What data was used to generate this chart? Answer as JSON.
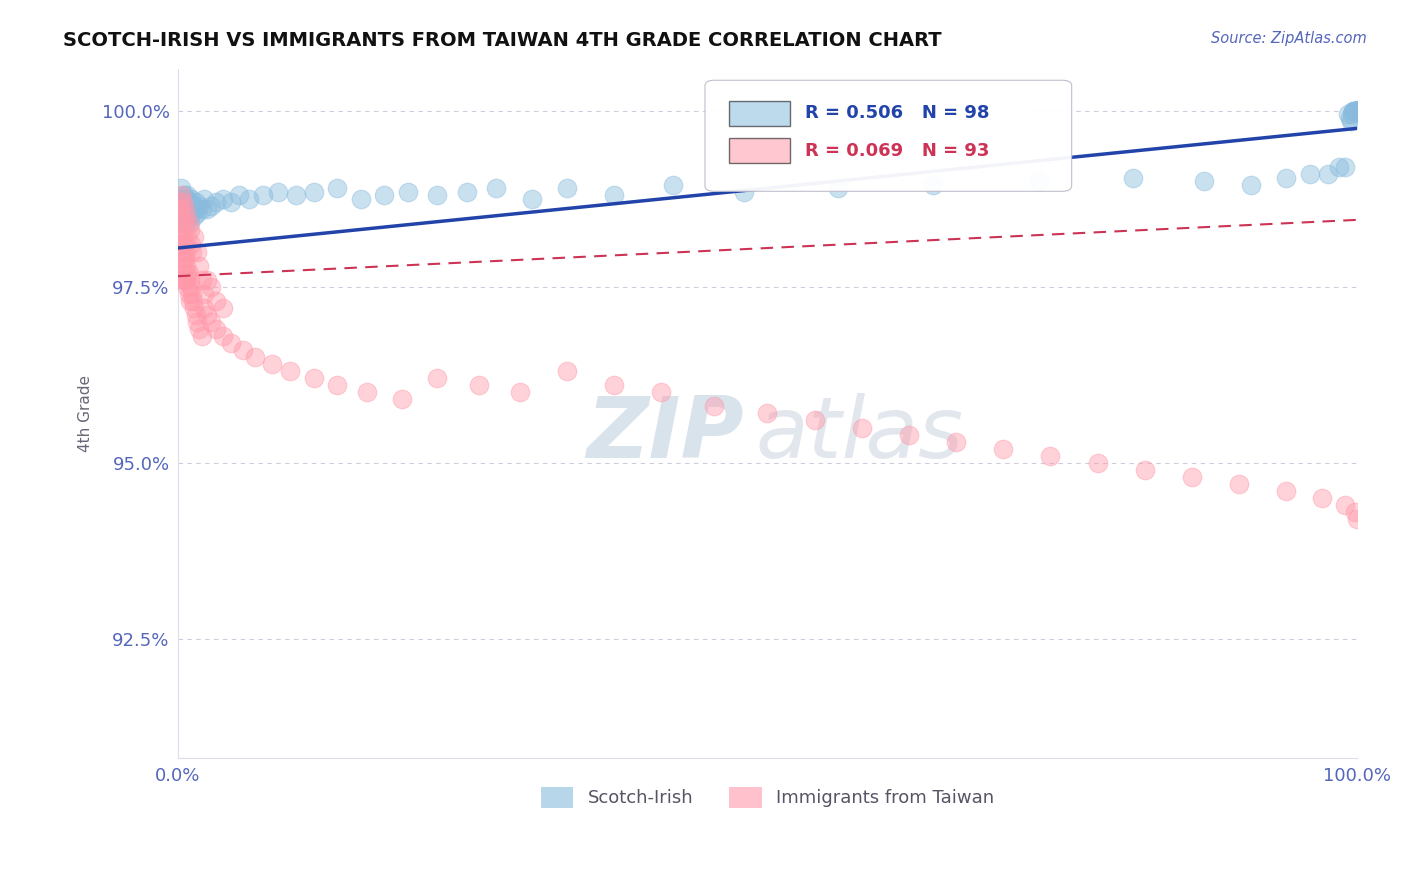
{
  "title": "SCOTCH-IRISH VS IMMIGRANTS FROM TAIWAN 4TH GRADE CORRELATION CHART",
  "source_text": "Source: ZipAtlas.com",
  "ylabel": "4th Grade",
  "watermark_left": "ZIP",
  "watermark_right": "atlas",
  "xlim": [
    0.0,
    1.0
  ],
  "ylim": [
    0.908,
    1.006
  ],
  "yticks": [
    0.925,
    0.95,
    0.975,
    1.0
  ],
  "ytick_labels": [
    "92.5%",
    "95.0%",
    "97.5%",
    "100.0%"
  ],
  "blue_label": "Scotch-Irish",
  "pink_label": "Immigrants from Taiwan",
  "blue_R": "0.506",
  "blue_N": "98",
  "pink_R": "0.069",
  "pink_N": "93",
  "blue_color": "#88bbdd",
  "pink_color": "#ff99aa",
  "blue_trend_color": "#2244aa",
  "pink_trend_color": "#cc3355",
  "grid_color": "#ccccdd",
  "tick_color": "#5566bb",
  "title_color": "#111111",
  "source_color": "#5566bb",
  "blue_trend": [
    0.0,
    0.9805,
    1.0,
    0.9975
  ],
  "pink_trend": [
    0.0,
    0.9765,
    1.0,
    0.9845
  ],
  "blue_pts_x": [
    0.002,
    0.003,
    0.003,
    0.004,
    0.004,
    0.005,
    0.005,
    0.006,
    0.006,
    0.007,
    0.007,
    0.008,
    0.008,
    0.009,
    0.009,
    0.01,
    0.01,
    0.011,
    0.012,
    0.013,
    0.014,
    0.015,
    0.016,
    0.018,
    0.02,
    0.022,
    0.025,
    0.028,
    0.032,
    0.038,
    0.045,
    0.052,
    0.06,
    0.072,
    0.085,
    0.1,
    0.115,
    0.135,
    0.155,
    0.175,
    0.195,
    0.22,
    0.245,
    0.27,
    0.3,
    0.33,
    0.37,
    0.42,
    0.48,
    0.56,
    0.64,
    0.73,
    0.81,
    0.87,
    0.91,
    0.94,
    0.96,
    0.975,
    0.985,
    0.99,
    0.992,
    0.994,
    0.995,
    0.996,
    0.997,
    0.997,
    0.998,
    0.998,
    0.999,
    0.999,
    0.999,
    1.0,
    1.0,
    1.0,
    1.0,
    1.0,
    1.0,
    1.0,
    1.0,
    1.0,
    1.0,
    1.0,
    1.0,
    1.0,
    1.0,
    1.0,
    1.0,
    1.0,
    1.0,
    1.0,
    1.0,
    1.0,
    1.0,
    1.0,
    1.0,
    1.0,
    1.0,
    1.0
  ],
  "blue_pts_y": [
    0.9875,
    0.989,
    0.986,
    0.987,
    0.985,
    0.988,
    0.9865,
    0.9845,
    0.987,
    0.984,
    0.9875,
    0.986,
    0.988,
    0.985,
    0.9865,
    0.984,
    0.987,
    0.9875,
    0.9855,
    0.9865,
    0.985,
    0.987,
    0.9855,
    0.9865,
    0.986,
    0.9875,
    0.986,
    0.9865,
    0.987,
    0.9875,
    0.987,
    0.988,
    0.9875,
    0.988,
    0.9885,
    0.988,
    0.9885,
    0.989,
    0.9875,
    0.988,
    0.9885,
    0.988,
    0.9885,
    0.989,
    0.9875,
    0.989,
    0.988,
    0.9895,
    0.9885,
    0.989,
    0.9895,
    0.99,
    0.9905,
    0.99,
    0.9895,
    0.9905,
    0.991,
    0.991,
    0.992,
    0.992,
    0.9995,
    0.999,
    0.9985,
    0.9995,
    1.0,
    1.0,
    1.0,
    1.0,
    1.0,
    1.0,
    1.0,
    1.0,
    1.0,
    1.0,
    1.0,
    1.0,
    1.0,
    1.0,
    1.0,
    1.0,
    1.0,
    1.0,
    1.0,
    1.0,
    1.0,
    1.0,
    1.0,
    1.0,
    1.0,
    1.0,
    1.0,
    1.0,
    1.0,
    1.0,
    1.0,
    1.0,
    1.0,
    1.0
  ],
  "pink_pts_x": [
    0.001,
    0.001,
    0.002,
    0.002,
    0.002,
    0.003,
    0.003,
    0.003,
    0.003,
    0.004,
    0.004,
    0.004,
    0.005,
    0.005,
    0.005,
    0.005,
    0.006,
    0.006,
    0.006,
    0.007,
    0.007,
    0.007,
    0.008,
    0.008,
    0.009,
    0.009,
    0.01,
    0.01,
    0.011,
    0.012,
    0.013,
    0.014,
    0.015,
    0.016,
    0.018,
    0.02,
    0.022,
    0.025,
    0.028,
    0.032,
    0.038,
    0.045,
    0.055,
    0.065,
    0.08,
    0.095,
    0.115,
    0.135,
    0.16,
    0.19,
    0.22,
    0.255,
    0.29,
    0.33,
    0.37,
    0.41,
    0.455,
    0.5,
    0.54,
    0.58,
    0.62,
    0.66,
    0.7,
    0.74,
    0.78,
    0.82,
    0.86,
    0.9,
    0.94,
    0.97,
    0.99,
    0.998,
    1.0,
    0.002,
    0.003,
    0.004,
    0.005,
    0.006,
    0.007,
    0.008,
    0.009,
    0.01,
    0.011,
    0.012,
    0.014,
    0.016,
    0.018,
    0.02,
    0.022,
    0.025,
    0.028,
    0.032,
    0.038
  ],
  "pink_pts_y": [
    0.986,
    0.982,
    0.987,
    0.984,
    0.98,
    0.985,
    0.981,
    0.983,
    0.978,
    0.982,
    0.979,
    0.976,
    0.981,
    0.9775,
    0.98,
    0.976,
    0.979,
    0.976,
    0.981,
    0.978,
    0.976,
    0.98,
    0.977,
    0.975,
    0.977,
    0.974,
    0.976,
    0.973,
    0.975,
    0.974,
    0.973,
    0.972,
    0.971,
    0.97,
    0.969,
    0.968,
    0.972,
    0.971,
    0.97,
    0.969,
    0.968,
    0.967,
    0.966,
    0.965,
    0.964,
    0.963,
    0.962,
    0.961,
    0.96,
    0.959,
    0.962,
    0.961,
    0.96,
    0.963,
    0.961,
    0.96,
    0.958,
    0.957,
    0.956,
    0.955,
    0.954,
    0.953,
    0.952,
    0.951,
    0.95,
    0.949,
    0.948,
    0.947,
    0.946,
    0.945,
    0.944,
    0.943,
    0.942,
    0.986,
    0.988,
    0.987,
    0.984,
    0.986,
    0.985,
    0.982,
    0.984,
    0.983,
    0.981,
    0.98,
    0.982,
    0.98,
    0.978,
    0.976,
    0.974,
    0.976,
    0.975,
    0.973,
    0.972
  ]
}
